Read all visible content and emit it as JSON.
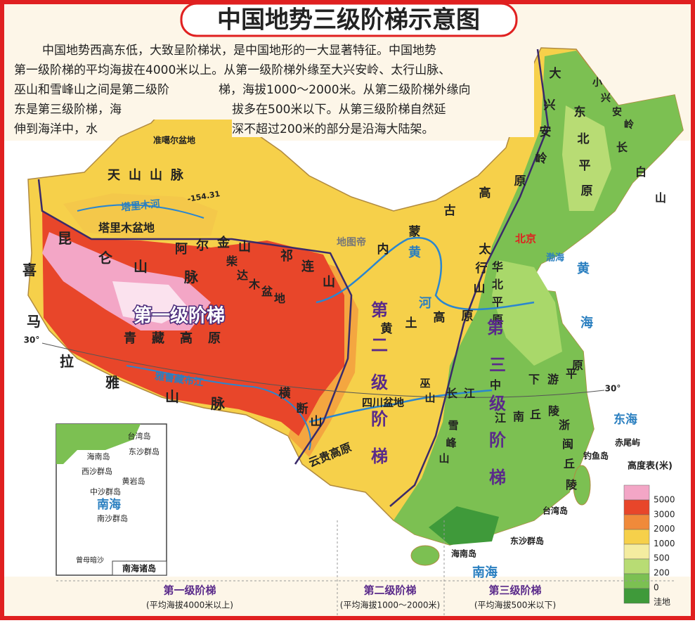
{
  "header": {
    "title": "中国地势三级阶梯示意图"
  },
  "description": [
    [
      "中国地势西高东低，大致呈阶梯状，是中国地形的一大显著特征。中国地势"
    ],
    [
      "第一级阶梯的平均海拔在4000米以上。从第一级阶梯外缘至大兴安岭、太行山脉、"
    ],
    [
      "巫山和雪峰山之间是第二级阶",
      "梯，海拔1000～2000米。从第二级阶梯外缘向"
    ],
    [
      "东是第三级阶梯，海",
      "拔多在500米以下。从第三级阶梯自然延"
    ],
    [
      "伸到海洋中，水",
      "深不超过200米的部分是沿海大陆架。"
    ]
  ],
  "map_labels": [
    "准噶尔盆地",
    "天山山脉",
    "塔里木河",
    "塔里木盆地",
    "昆仑山脉",
    "阿尔金山",
    "祁连山",
    "柴达木盆地",
    "第一级阶梯",
    "青藏高原",
    "雅鲁藏布江",
    "喜马拉雅山脉",
    "横断山",
    "大兴安岭",
    "小兴安岭",
    "长白山",
    "东北平原",
    "内蒙古高原",
    "黄河",
    "黄土高原",
    "太行山",
    "华北平原",
    "北京",
    "渤海",
    "黄海",
    "东海",
    "南海",
    "第二级阶梯",
    "第三级阶梯",
    "四川盆地",
    "巫山",
    "长江中下游平原",
    "江南丘陵",
    "浙闽丘陵",
    "雪峰山",
    "云贵高原",
    "赤尾屿",
    "钓鱼岛",
    "台湾岛",
    "海南岛",
    "东沙群岛",
    "-154.31",
    "30°",
    "30°",
    "地图帝"
  ],
  "inset": {
    "title": "南海诸岛",
    "labels": [
      "台湾岛",
      "东沙群岛",
      "海南岛",
      "西沙群岛",
      "黄岩岛",
      "中沙群岛",
      "南海",
      "南沙群岛",
      "曾母暗沙"
    ]
  },
  "legend": {
    "title": "高度表(米)",
    "levels": [
      "5000",
      "3000",
      "2000",
      "1000",
      "500",
      "200",
      "0",
      "洼地"
    ]
  },
  "footer": [
    {
      "name": "第一级阶梯",
      "note": "(平均海拔4000米以上)"
    },
    {
      "name": "第二级阶梯",
      "note": "(平均海拔1000～2000米)"
    },
    {
      "name": "第三级阶梯",
      "note": "(平均海拔500米以下)"
    }
  ]
}
